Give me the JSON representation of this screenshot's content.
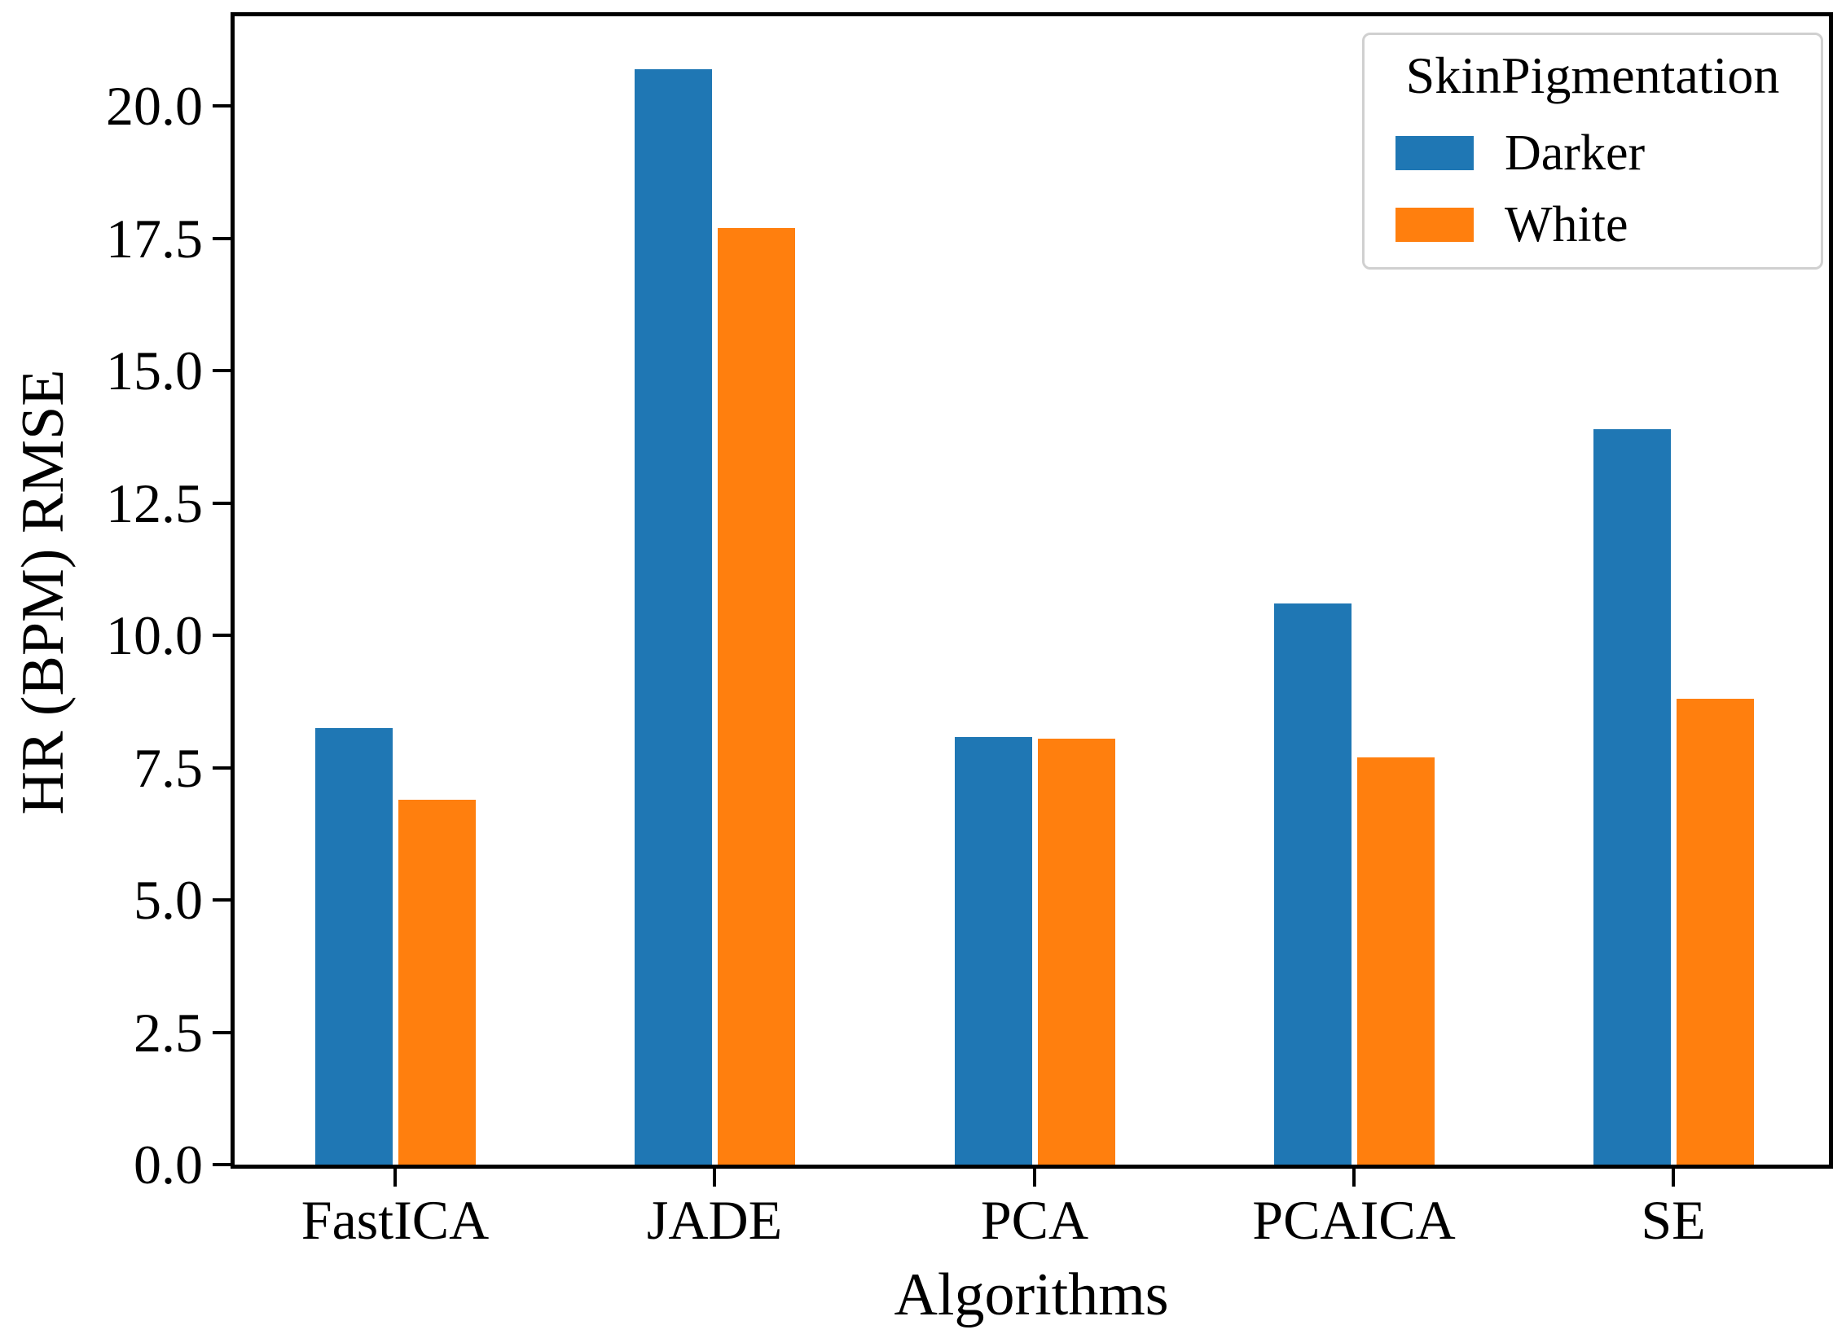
{
  "figure": {
    "background": "#ffffff",
    "axis_color": "#000000"
  },
  "chart_data": {
    "type": "bar",
    "title": "",
    "xlabel": "Algorithms",
    "ylabel": "HR (BPM) RMSE",
    "categories": [
      "FastICA",
      "JADE",
      "PCA",
      "PCAICA",
      "SE"
    ],
    "series": [
      {
        "name": "Darker",
        "color": "#1f77b4",
        "values": [
          8.25,
          20.7,
          8.07,
          10.6,
          13.9
        ]
      },
      {
        "name": "White",
        "color": "#ff7f0e",
        "values": [
          6.9,
          17.7,
          8.04,
          7.7,
          8.8
        ]
      }
    ],
    "legend": {
      "title": "SkinPigmentation",
      "position": "upper-right",
      "border_color": "#d0d0d0",
      "entries": [
        "Darker",
        "White"
      ]
    },
    "yticks": [
      0,
      2.5,
      5,
      7.5,
      10,
      12.5,
      15,
      17.5,
      20
    ],
    "ytick_labels": [
      "0.0",
      "2.5",
      "5.0",
      "7.5",
      "10.0",
      "12.5",
      "15.0",
      "17.5",
      "20.0"
    ],
    "ylim": [
      0,
      21.7
    ],
    "grid": false
  }
}
